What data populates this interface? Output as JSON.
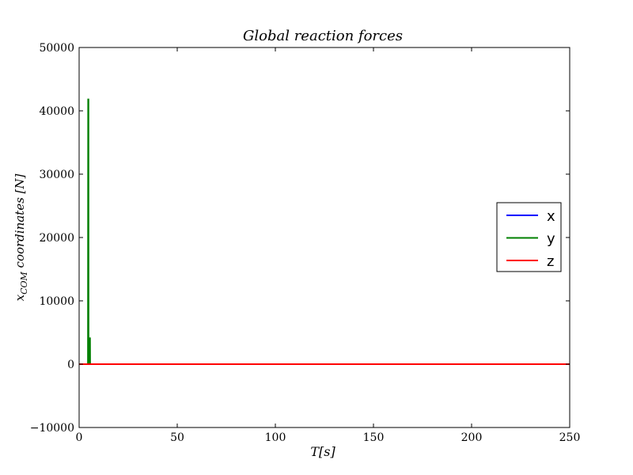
{
  "chart_data": {
    "type": "line",
    "title": "Global reaction forces",
    "xlabel": "T[s]",
    "ylabel_main": "x",
    "ylabel_sub": "COM",
    "ylabel_rest": " coordinates [N]",
    "xlim": [
      0,
      250
    ],
    "ylim": [
      -10000,
      50000
    ],
    "x_ticks": [
      0,
      50,
      100,
      150,
      200,
      250
    ],
    "y_ticks": [
      -10000,
      0,
      10000,
      20000,
      30000,
      40000,
      50000
    ],
    "x_tick_labels": [
      "0",
      "50",
      "100",
      "150",
      "200",
      "250"
    ],
    "y_tick_labels": [
      "−10000",
      "0",
      "10000",
      "20000",
      "30000",
      "40000",
      "50000"
    ],
    "grid": false,
    "legend_position": "center-right",
    "series": [
      {
        "name": "x",
        "color": "#0000ff",
        "points": [
          [
            0,
            0
          ],
          [
            250,
            0
          ]
        ]
      },
      {
        "name": "y",
        "color": "#008000",
        "points": [
          [
            4.5,
            0
          ],
          [
            4.6,
            41800
          ],
          [
            4.75,
            41800
          ],
          [
            4.8,
            0
          ],
          [
            5.2,
            0
          ],
          [
            5.3,
            4100
          ],
          [
            5.55,
            4100
          ],
          [
            5.6,
            0
          ],
          [
            250,
            0
          ]
        ]
      },
      {
        "name": "z",
        "color": "#ff0000",
        "points": [
          [
            0,
            0
          ],
          [
            250,
            0
          ]
        ]
      }
    ]
  }
}
